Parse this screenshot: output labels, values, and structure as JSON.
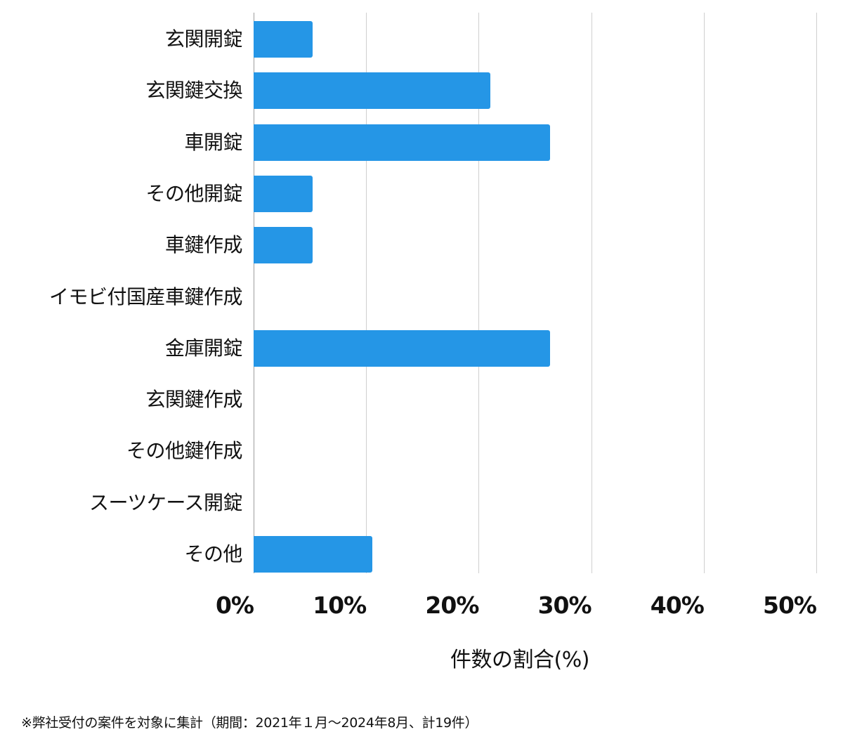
{
  "chart_data": {
    "type": "bar",
    "orientation": "horizontal",
    "title": "",
    "categories": [
      "玄関開錠",
      "玄関鍵交換",
      "車開錠",
      "その他開錠",
      "車鍵作成",
      "イモビ付国産車鍵作成",
      "金庫開錠",
      "玄関鍵作成",
      "その他鍵作成",
      "スーツケース開錠",
      "その他"
    ],
    "values": [
      5.26,
      21.05,
      26.32,
      5.26,
      5.26,
      0,
      26.32,
      0,
      0,
      0,
      10.53
    ],
    "xlabel": "件数の割合(%)",
    "ylabel": "",
    "xlim": [
      0,
      50
    ],
    "xticks": [
      "0%",
      "10%",
      "20%",
      "30%",
      "40%",
      "50%"
    ],
    "grid": true,
    "legend": "none",
    "bar_color": "#2596e6"
  },
  "footnote": "※弊社受付の案件を対象に集計（期間：2021年１月〜2024年8月、計19件）"
}
